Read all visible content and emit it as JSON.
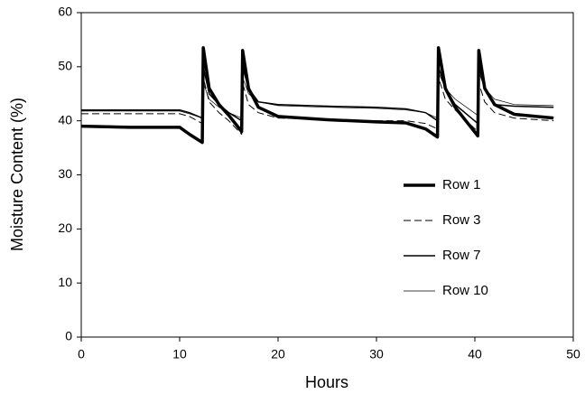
{
  "chart_data": {
    "type": "line",
    "xlabel": "Hours",
    "ylabel": "Moisture Content (%)",
    "x": [
      0,
      5,
      10,
      11,
      12.3,
      12.4,
      13,
      14,
      15,
      16.3,
      16.4,
      17,
      18,
      20,
      25,
      30,
      33,
      35,
      36.2,
      36.3,
      37,
      38,
      40.3,
      40.4,
      41,
      42,
      44,
      48
    ],
    "series": [
      {
        "name": "Row 1",
        "color": "#000000",
        "line_style": "solid",
        "linewidth": 3.5,
        "values": [
          39,
          38.8,
          38.8,
          37.5,
          36,
          53.5,
          46,
          43,
          41,
          38,
          53,
          46,
          42.5,
          40.8,
          40.2,
          39.8,
          39.6,
          38.5,
          37,
          53.5,
          46,
          42.5,
          37.2,
          53,
          46,
          43,
          41.2,
          40.5
        ]
      },
      {
        "name": "Row 3",
        "color": "#000000",
        "line_style": "dashed",
        "linewidth": 1,
        "values": [
          41.3,
          41.3,
          41.3,
          40.8,
          39.5,
          48,
          43.5,
          41.5,
          40,
          37.5,
          47,
          43,
          41.5,
          40.5,
          40.3,
          40,
          40,
          39.5,
          38.5,
          48,
          44,
          42,
          38,
          47,
          43.5,
          41.5,
          40.5,
          40
        ]
      },
      {
        "name": "Row 7",
        "color": "#000000",
        "line_style": "solid",
        "linewidth": 1.5,
        "values": [
          42,
          42,
          42,
          41.5,
          40.5,
          50,
          45,
          43,
          41.5,
          40,
          50,
          46,
          43.5,
          43,
          42.7,
          42.5,
          42.2,
          41.5,
          40,
          50,
          46,
          43,
          39.5,
          50,
          46,
          43,
          42.7,
          42.5
        ]
      },
      {
        "name": "Row 10",
        "color": "#000000",
        "line_style": "solid",
        "linewidth": 0.7,
        "values": [
          41.8,
          41.8,
          41.8,
          41.3,
          40.5,
          47,
          44,
          42.5,
          41.5,
          40.5,
          48,
          45,
          43.5,
          42.8,
          42.5,
          42.3,
          42,
          41.5,
          40.5,
          49,
          46,
          44,
          41,
          49,
          46,
          44,
          43,
          42.8
        ]
      }
    ],
    "xlim": [
      0,
      50
    ],
    "xticks": [
      0,
      10,
      20,
      30,
      40,
      50
    ],
    "ylim": [
      0,
      60
    ],
    "yticks": [
      0,
      10,
      20,
      30,
      40,
      50,
      60
    ],
    "grid": false,
    "legend": "lower right"
  }
}
